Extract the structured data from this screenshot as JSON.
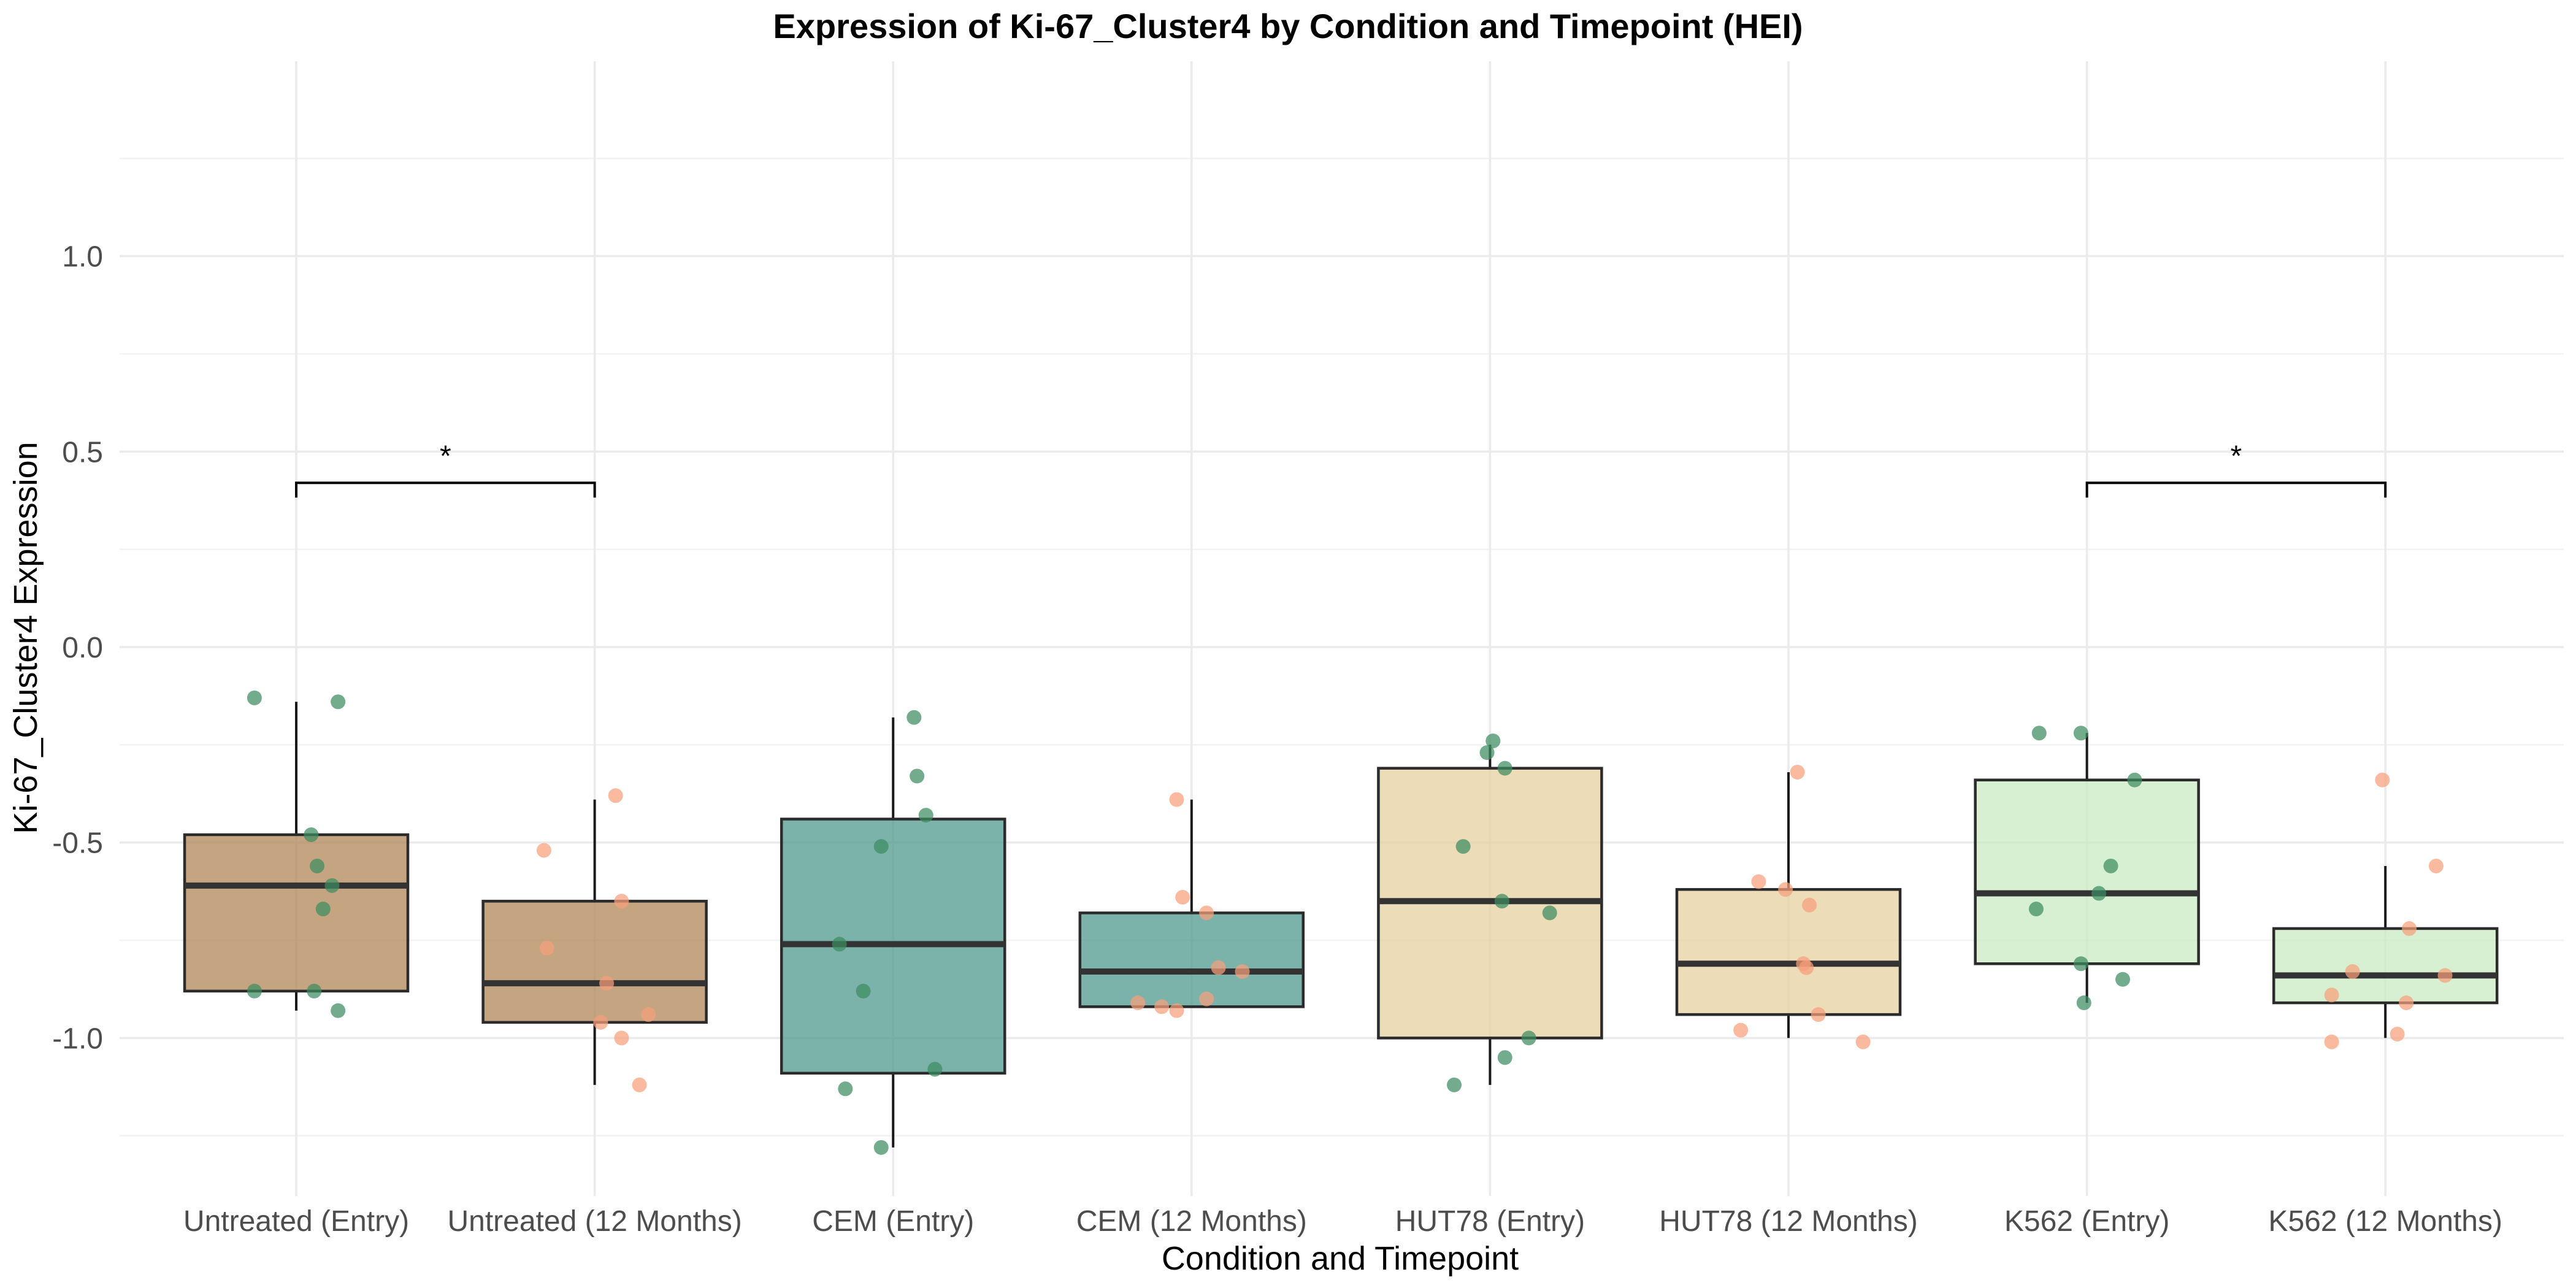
{
  "chart_data": {
    "type": "box",
    "title": "Expression of Ki-67_Cluster4 by Condition and Timepoint (HEI)",
    "xlabel": "Condition and Timepoint",
    "ylabel": "Ki-67_Cluster4 Expression",
    "ylim": [
      -1.4,
      1.5
    ],
    "yticks": [
      -1.0,
      -0.5,
      0.0,
      0.5,
      1.0
    ],
    "ytick_labels": [
      "-1.0",
      "-0.5",
      "0.0",
      "0.5",
      "1.0"
    ],
    "grid": true,
    "legend": "none",
    "point_colors": {
      "Entry": "#3c8c5f",
      "12 Months": "#f7a07c"
    },
    "categories": [
      "Untreated (Entry)",
      "Untreated (12 Months)",
      "CEM (Entry)",
      "CEM (12 Months)",
      "HUT78 (Entry)",
      "HUT78 (12 Months)",
      "K562 (Entry)",
      "K562 (12 Months)"
    ],
    "boxes": [
      {
        "category": "Untreated (Entry)",
        "fill": "#b08557",
        "whisker_low": -0.93,
        "q1": -0.88,
        "median": -0.61,
        "q3": -0.48,
        "whisker_high": -0.14,
        "points": [
          [
            -0.14,
            -0.13
          ],
          [
            0.14,
            -0.14
          ],
          [
            0.05,
            -0.48
          ],
          [
            0.07,
            -0.56
          ],
          [
            0.12,
            -0.61
          ],
          [
            0.09,
            -0.67
          ],
          [
            -0.14,
            -0.88
          ],
          [
            0.06,
            -0.88
          ],
          [
            0.14,
            -0.93
          ]
        ]
      },
      {
        "category": "Untreated (12 Months)",
        "fill": "#b08557",
        "whisker_low": -1.12,
        "q1": -0.96,
        "median": -0.86,
        "q3": -0.65,
        "whisker_high": -0.39,
        "points": [
          [
            0.07,
            -0.38
          ],
          [
            -0.17,
            -0.52
          ],
          [
            0.09,
            -0.65
          ],
          [
            -0.16,
            -0.77
          ],
          [
            0.04,
            -0.86
          ],
          [
            0.02,
            -0.96
          ],
          [
            0.18,
            -0.94
          ],
          [
            0.09,
            -1.0
          ],
          [
            0.15,
            -1.12
          ]
        ]
      },
      {
        "category": "CEM (Entry)",
        "fill": "#4f9a8f",
        "whisker_low": -1.28,
        "q1": -1.09,
        "median": -0.76,
        "q3": -0.44,
        "whisker_high": -0.18,
        "points": [
          [
            0.07,
            -0.18
          ],
          [
            0.08,
            -0.33
          ],
          [
            0.11,
            -0.43
          ],
          [
            -0.04,
            -0.51
          ],
          [
            -0.18,
            -0.76
          ],
          [
            -0.1,
            -0.88
          ],
          [
            -0.16,
            -1.13
          ],
          [
            0.14,
            -1.08
          ],
          [
            -0.04,
            -1.28
          ]
        ]
      },
      {
        "category": "CEM (12 Months)",
        "fill": "#4f9a8f",
        "whisker_low": -0.92,
        "q1": -0.92,
        "median": -0.83,
        "q3": -0.68,
        "whisker_high": -0.39,
        "points": [
          [
            -0.05,
            -0.39
          ],
          [
            -0.03,
            -0.64
          ],
          [
            0.05,
            -0.68
          ],
          [
            0.09,
            -0.82
          ],
          [
            0.17,
            -0.83
          ],
          [
            -0.18,
            -0.91
          ],
          [
            -0.1,
            -0.92
          ],
          [
            -0.05,
            -0.93
          ],
          [
            0.05,
            -0.9
          ]
        ]
      },
      {
        "category": "HUT78 (Entry)",
        "fill": "#e6d09f",
        "whisker_low": -1.12,
        "q1": -1.0,
        "median": -0.65,
        "q3": -0.31,
        "whisker_high": -0.25,
        "points": [
          [
            0.01,
            -0.24
          ],
          [
            -0.01,
            -0.27
          ],
          [
            0.05,
            -0.31
          ],
          [
            -0.09,
            -0.51
          ],
          [
            0.04,
            -0.65
          ],
          [
            0.2,
            -0.68
          ],
          [
            0.13,
            -1.0
          ],
          [
            0.05,
            -1.05
          ],
          [
            -0.12,
            -1.12
          ]
        ]
      },
      {
        "category": "HUT78 (12 Months)",
        "fill": "#e6d09f",
        "whisker_low": -1.0,
        "q1": -0.94,
        "median": -0.81,
        "q3": -0.62,
        "whisker_high": -0.32,
        "points": [
          [
            0.03,
            -0.32
          ],
          [
            -0.1,
            -0.6
          ],
          [
            -0.01,
            -0.62
          ],
          [
            0.07,
            -0.66
          ],
          [
            0.05,
            -0.81
          ],
          [
            0.06,
            -0.82
          ],
          [
            0.1,
            -0.94
          ],
          [
            -0.16,
            -0.98
          ],
          [
            0.25,
            -1.01
          ]
        ]
      },
      {
        "category": "K562 (Entry)",
        "fill": "#c9ebc2",
        "whisker_low": -0.91,
        "q1": -0.81,
        "median": -0.63,
        "q3": -0.34,
        "whisker_high": -0.22,
        "points": [
          [
            -0.16,
            -0.22
          ],
          [
            -0.02,
            -0.22
          ],
          [
            0.16,
            -0.34
          ],
          [
            0.08,
            -0.56
          ],
          [
            -0.17,
            -0.67
          ],
          [
            0.04,
            -0.63
          ],
          [
            -0.02,
            -0.81
          ],
          [
            -0.01,
            -0.91
          ],
          [
            0.12,
            -0.85
          ]
        ]
      },
      {
        "category": "K562 (12 Months)",
        "fill": "#c9ebc2",
        "whisker_low": -1.0,
        "q1": -0.91,
        "median": -0.84,
        "q3": -0.72,
        "whisker_high": -0.56,
        "points": [
          [
            -0.01,
            -0.34
          ],
          [
            0.17,
            -0.56
          ],
          [
            0.08,
            -0.72
          ],
          [
            -0.11,
            -0.83
          ],
          [
            0.2,
            -0.84
          ],
          [
            -0.18,
            -0.89
          ],
          [
            0.07,
            -0.91
          ],
          [
            -0.18,
            -1.01
          ],
          [
            0.04,
            -0.99
          ]
        ]
      }
    ],
    "significance": [
      {
        "from": "Untreated (Entry)",
        "to": "Untreated (12 Months)",
        "y": 0.42,
        "label": "*"
      },
      {
        "from": "K562 (Entry)",
        "to": "K562 (12 Months)",
        "y": 0.42,
        "label": "*"
      }
    ]
  }
}
